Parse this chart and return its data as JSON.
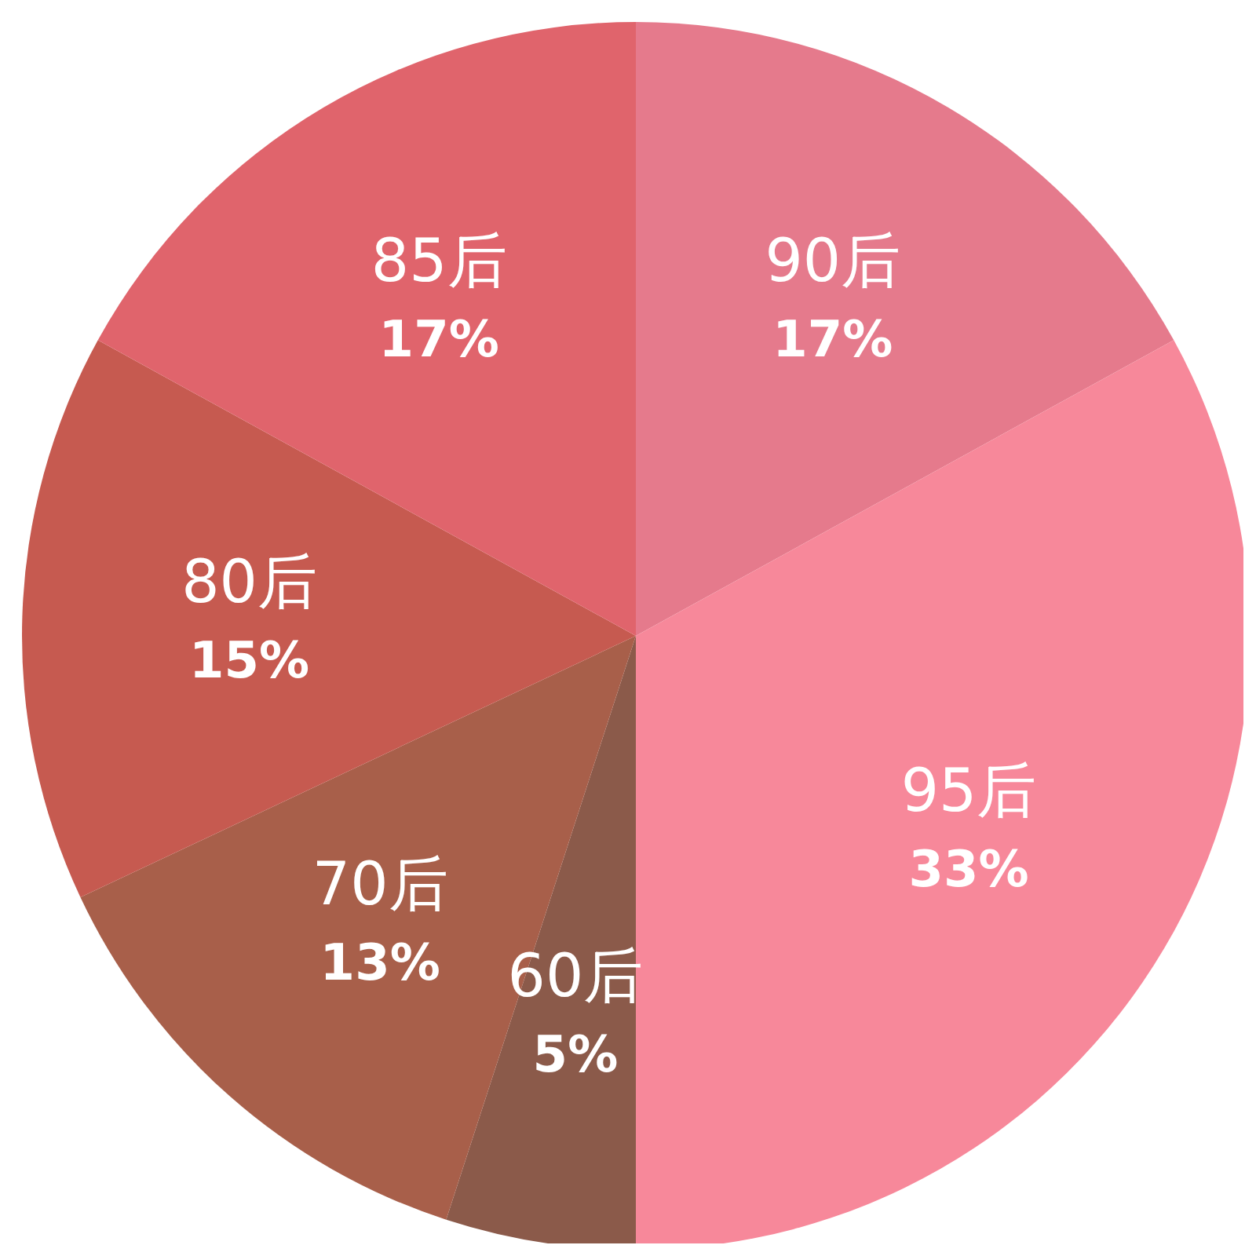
{
  "chart_data": {
    "type": "pie",
    "categories": [
      "90后",
      "95后",
      "60后",
      "70后",
      "80后",
      "85后"
    ],
    "values": [
      17,
      33,
      5,
      13,
      15,
      17
    ],
    "colors": [
      "#e57a8c",
      "#f7889a",
      "#8b5a4a",
      "#a85f4a",
      "#c65a50",
      "#e0646c"
    ],
    "value_labels": [
      "17%",
      "33%",
      "5%",
      "13%",
      "15%",
      "17%"
    ],
    "legend": false
  }
}
